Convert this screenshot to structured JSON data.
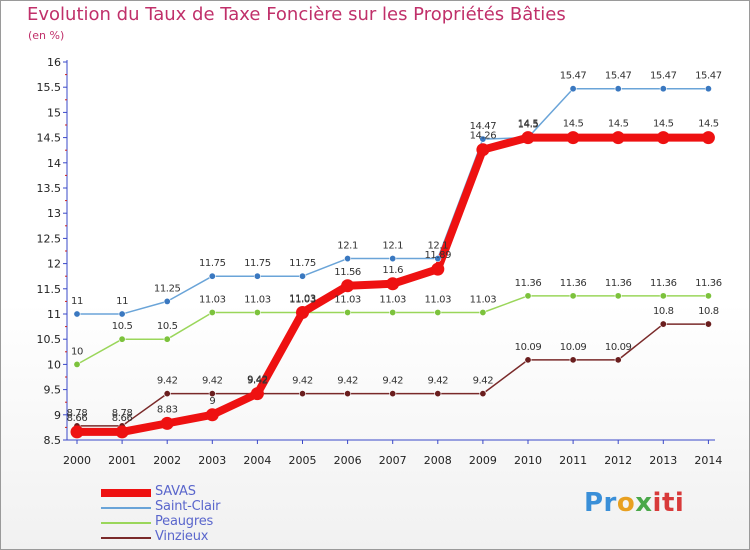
{
  "header": {
    "title": "Evolution du Taux de Taxe Foncière sur les Propriétés Bâties",
    "unit": "(en %)"
  },
  "logo": {
    "parts": [
      "Pr",
      "o",
      "x",
      "iti"
    ]
  },
  "chart_data": {
    "type": "line",
    "title": "Evolution du Taux de Taxe Foncière sur les Propriétés Bâties",
    "ylabel": "(en %)",
    "xlabel": "",
    "ylim": [
      8.5,
      16
    ],
    "yticks": [
      "8.5",
      "9",
      "9.5",
      "10",
      "10.5",
      "11",
      "11.5",
      "12",
      "12.5",
      "13",
      "13.5",
      "14",
      "14.5",
      "15",
      "15.5",
      "16"
    ],
    "grid": false,
    "legend_position": "bottom-left",
    "categories": [
      "2000",
      "2001",
      "2002",
      "2003",
      "2004",
      "2005",
      "2006",
      "2007",
      "2008",
      "2009",
      "2010",
      "2011",
      "2012",
      "2013",
      "2014"
    ],
    "series": [
      {
        "name": "SAVAS",
        "color": "#ee1111",
        "marker": "#ee1111",
        "width": 8,
        "values": [
          8.66,
          8.66,
          8.83,
          9,
          9.42,
          11.03,
          11.56,
          11.6,
          11.89,
          14.26,
          14.5,
          14.5,
          14.5,
          14.5,
          14.5
        ],
        "labels": [
          "8.66",
          "8.66",
          "8.83",
          "9",
          "9.42",
          "11.03",
          "11.56",
          "11.6",
          "11.89",
          "14.26",
          "14.5",
          "14.5",
          "14.5",
          "14.5",
          "14.5"
        ]
      },
      {
        "name": "Saint-Clair",
        "color": "#6aa4d8",
        "marker": "#3a78c0",
        "width": 1.5,
        "values": [
          11,
          11,
          11.25,
          11.75,
          11.75,
          11.75,
          12.1,
          12.1,
          12.1,
          14.47,
          14.5,
          15.47,
          15.47,
          15.47,
          15.47
        ],
        "labels": [
          "11",
          "11",
          "11.25",
          "11.75",
          "11.75",
          "11.75",
          "12.1",
          "12.1",
          "12.1",
          "14.47",
          "14.5",
          "15.47",
          "15.47",
          "15.47",
          "15.47"
        ]
      },
      {
        "name": "Peaugres",
        "color": "#9ad65a",
        "marker": "#7cc23c",
        "width": 1.5,
        "values": [
          10,
          10.5,
          10.5,
          11.03,
          11.03,
          11.03,
          11.03,
          11.03,
          11.03,
          11.03,
          11.36,
          11.36,
          11.36,
          11.36,
          11.36
        ],
        "labels": [
          "10",
          "10.5",
          "10.5",
          "11.03",
          "11.03",
          "11.03",
          "11.03",
          "11.03",
          "11.03",
          "11.03",
          "11.36",
          "11.36",
          "11.36",
          "11.36",
          "11.36"
        ]
      },
      {
        "name": "Vinzieux",
        "color": "#7a2a2a",
        "marker": "#6a1e1e",
        "width": 1.5,
        "values": [
          8.78,
          8.78,
          9.42,
          9.42,
          9.42,
          9.42,
          9.42,
          9.42,
          9.42,
          9.42,
          10.09,
          10.09,
          10.09,
          10.8,
          10.8
        ],
        "labels": [
          "8.78",
          "8.78",
          "9.42",
          "9.42",
          "9.42",
          "9.42",
          "9.42",
          "9.42",
          "9.42",
          "9.42",
          "10.09",
          "10.09",
          "10.09",
          "10.8",
          "10.8"
        ]
      }
    ]
  }
}
